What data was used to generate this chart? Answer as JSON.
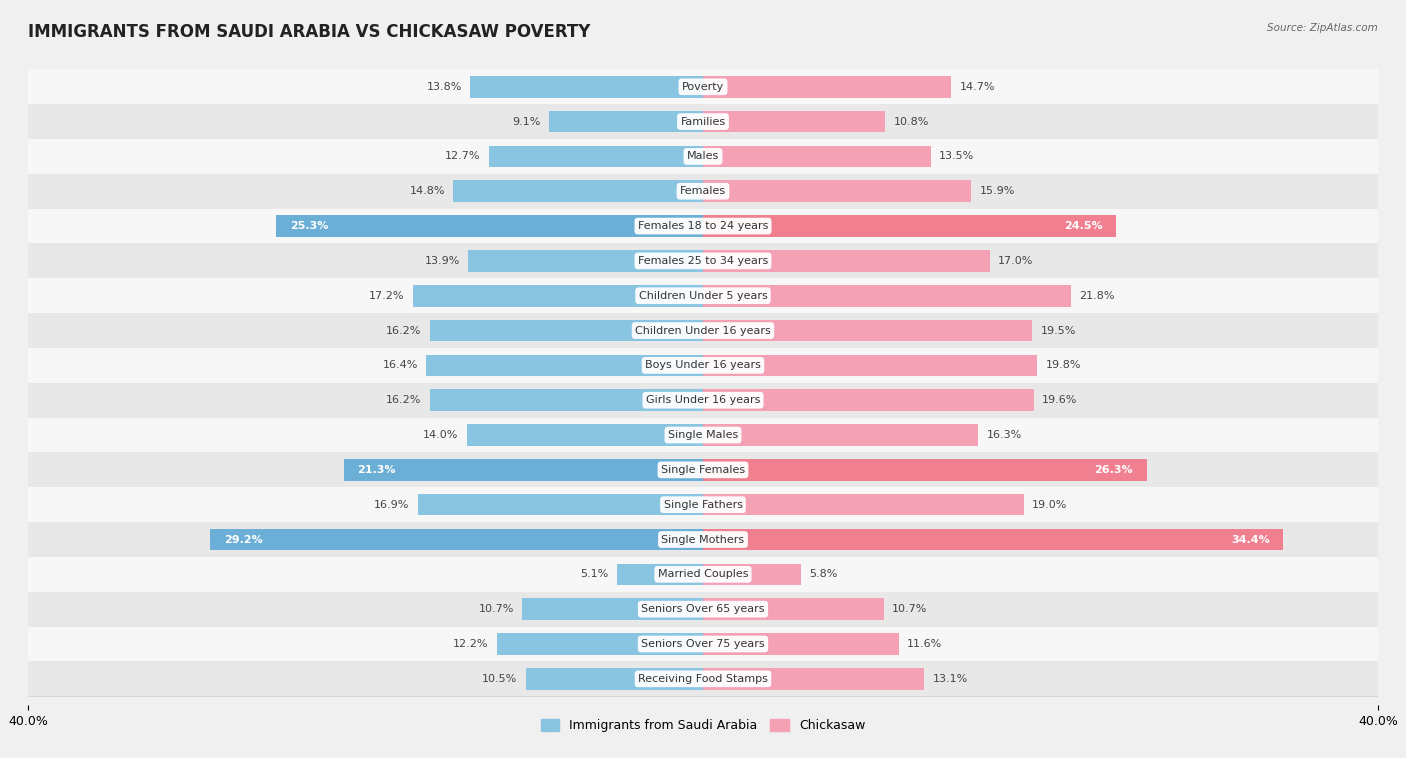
{
  "title": "IMMIGRANTS FROM SAUDI ARABIA VS CHICKASAW POVERTY",
  "source": "Source: ZipAtlas.com",
  "categories": [
    "Poverty",
    "Families",
    "Males",
    "Females",
    "Females 18 to 24 years",
    "Females 25 to 34 years",
    "Children Under 5 years",
    "Children Under 16 years",
    "Boys Under 16 years",
    "Girls Under 16 years",
    "Single Males",
    "Single Females",
    "Single Fathers",
    "Single Mothers",
    "Married Couples",
    "Seniors Over 65 years",
    "Seniors Over 75 years",
    "Receiving Food Stamps"
  ],
  "left_values": [
    13.8,
    9.1,
    12.7,
    14.8,
    25.3,
    13.9,
    17.2,
    16.2,
    16.4,
    16.2,
    14.0,
    21.3,
    16.9,
    29.2,
    5.1,
    10.7,
    12.2,
    10.5
  ],
  "right_values": [
    14.7,
    10.8,
    13.5,
    15.9,
    24.5,
    17.0,
    21.8,
    19.5,
    19.8,
    19.6,
    16.3,
    26.3,
    19.0,
    34.4,
    5.8,
    10.7,
    11.6,
    13.1
  ],
  "left_color": "#89c4e1",
  "right_color": "#f4a0b5",
  "left_highlight_color": "#6baed6",
  "right_highlight_color": "#f08090",
  "highlight_rows": [
    4,
    11,
    13
  ],
  "axis_max": 40.0,
  "left_label": "Immigrants from Saudi Arabia",
  "right_label": "Chickasaw",
  "background_color": "#f0f0f0",
  "row_bg_even": "#f7f7f7",
  "row_bg_odd": "#e8e8e8",
  "title_fontsize": 12,
  "label_fontsize": 8,
  "value_fontsize": 8
}
